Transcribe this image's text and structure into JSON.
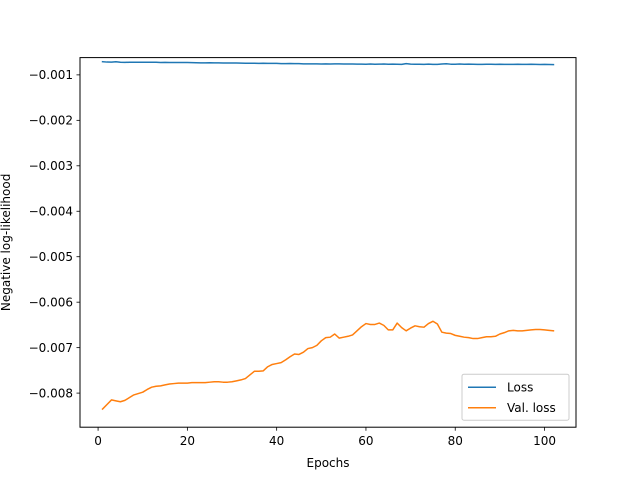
{
  "chart_data": {
    "type": "line",
    "title": "",
    "xlabel": "Epochs",
    "ylabel": "Negative log-likelihood",
    "xlim": [
      -4.05,
      107.05
    ],
    "ylim": [
      -0.00875,
      -0.00062
    ],
    "xticks": [
      0,
      20,
      40,
      60,
      80,
      100
    ],
    "yticks": [
      -0.008,
      -0.007,
      -0.006,
      -0.005,
      -0.004,
      -0.003,
      -0.002,
      -0.001
    ],
    "xtick_labels": [
      "0",
      "20",
      "40",
      "60",
      "80",
      "100"
    ],
    "ytick_labels": [
      "−0.008",
      "−0.007",
      "−0.006",
      "−0.005",
      "−0.004",
      "−0.003",
      "−0.002",
      "−0.001"
    ],
    "grid": false,
    "legend_position": "lower-right",
    "series": [
      {
        "name": "Loss",
        "color": "#1f77b4",
        "x": [
          1,
          2,
          3,
          4,
          5,
          6,
          7,
          8,
          9,
          10,
          11,
          12,
          13,
          14,
          15,
          16,
          17,
          18,
          19,
          20,
          21,
          22,
          23,
          24,
          25,
          26,
          27,
          28,
          29,
          30,
          31,
          32,
          33,
          34,
          35,
          36,
          37,
          38,
          39,
          40,
          41,
          42,
          43,
          44,
          45,
          46,
          47,
          48,
          49,
          50,
          51,
          52,
          53,
          54,
          55,
          56,
          57,
          58,
          59,
          60,
          61,
          62,
          63,
          64,
          65,
          66,
          67,
          68,
          69,
          70,
          71,
          72,
          73,
          74,
          75,
          76,
          77,
          78,
          79,
          80,
          81,
          82,
          83,
          84,
          85,
          86,
          87,
          88,
          89,
          90,
          91,
          92,
          93,
          94,
          95,
          96,
          97,
          98,
          99,
          100,
          101,
          102
        ],
        "y": [
          -0.00071,
          -0.000718,
          -0.00072,
          -0.000712,
          -0.000722,
          -0.000725,
          -0.000723,
          -0.000722,
          -0.000723,
          -0.000722,
          -0.000722,
          -0.000722,
          -0.000723,
          -0.000727,
          -0.000725,
          -0.000727,
          -0.000727,
          -0.000728,
          -0.000728,
          -0.000728,
          -0.00073,
          -0.000733,
          -0.000735,
          -0.000735,
          -0.000733,
          -0.000737,
          -0.000735,
          -0.000738,
          -0.00074,
          -0.00074,
          -0.00074,
          -0.000742,
          -0.000745,
          -0.000744,
          -0.000745,
          -0.000746,
          -0.000745,
          -0.000746,
          -0.000747,
          -0.000746,
          -0.000752,
          -0.000752,
          -0.00075,
          -0.000752,
          -0.000753,
          -0.000758,
          -0.000757,
          -0.000757,
          -0.000757,
          -0.00076,
          -0.000758,
          -0.00076,
          -0.000758,
          -0.000757,
          -0.000762,
          -0.00076,
          -0.000762,
          -0.000764,
          -0.000764,
          -0.000765,
          -0.000762,
          -0.000765,
          -0.000763,
          -0.000762,
          -0.000767,
          -0.000763,
          -0.000765,
          -0.00077,
          -0.000752,
          -0.000764,
          -0.000767,
          -0.000765,
          -0.000768,
          -0.000764,
          -0.000769,
          -0.000768,
          -0.000762,
          -0.000755,
          -0.000765,
          -0.000765,
          -0.000762,
          -0.000766,
          -0.000764,
          -0.000766,
          -0.000768,
          -0.000769,
          -0.000767,
          -0.000767,
          -0.000769,
          -0.000766,
          -0.000768,
          -0.000769,
          -0.000769,
          -0.000767,
          -0.000769,
          -0.000768,
          -0.000766,
          -0.000769,
          -0.000771,
          -0.00077,
          -0.000772,
          -0.000773
        ]
      },
      {
        "name": "Val. loss",
        "color": "#ff7f0e",
        "x": [
          1,
          2,
          3,
          4,
          5,
          6,
          7,
          8,
          9,
          10,
          11,
          12,
          13,
          14,
          15,
          16,
          17,
          18,
          19,
          20,
          21,
          22,
          23,
          24,
          25,
          26,
          27,
          28,
          29,
          30,
          31,
          32,
          33,
          34,
          35,
          36,
          37,
          38,
          39,
          40,
          41,
          42,
          43,
          44,
          45,
          46,
          47,
          48,
          49,
          50,
          51,
          52,
          53,
          54,
          55,
          56,
          57,
          58,
          59,
          60,
          61,
          62,
          63,
          64,
          65,
          66,
          67,
          68,
          69,
          70,
          71,
          72,
          73,
          74,
          75,
          76,
          77,
          78,
          79,
          80,
          81,
          82,
          83,
          84,
          85,
          86,
          87,
          88,
          89,
          90,
          91,
          92,
          93,
          94,
          95,
          96,
          97,
          98,
          99,
          100,
          101,
          102
        ],
        "y": [
          -0.00835,
          -0.00825,
          -0.00815,
          -0.00817,
          -0.00819,
          -0.00816,
          -0.0081,
          -0.00804,
          -0.00801,
          -0.00798,
          -0.00792,
          -0.00787,
          -0.00785,
          -0.00784,
          -0.00782,
          -0.0078,
          -0.00779,
          -0.00778,
          -0.00778,
          -0.00778,
          -0.00777,
          -0.00777,
          -0.00777,
          -0.00777,
          -0.00776,
          -0.00775,
          -0.00775,
          -0.00776,
          -0.00776,
          -0.00775,
          -0.00773,
          -0.00771,
          -0.00768,
          -0.0076,
          -0.00752,
          -0.00752,
          -0.00751,
          -0.00742,
          -0.00737,
          -0.00735,
          -0.00733,
          -0.00727,
          -0.0072,
          -0.00714,
          -0.00715,
          -0.0071,
          -0.00702,
          -0.007,
          -0.00695,
          -0.00685,
          -0.00678,
          -0.00677,
          -0.0067,
          -0.00679,
          -0.00677,
          -0.00675,
          -0.00672,
          -0.00663,
          -0.00654,
          -0.00647,
          -0.00649,
          -0.00649,
          -0.00646,
          -0.00651,
          -0.00661,
          -0.00661,
          -0.00646,
          -0.00656,
          -0.00663,
          -0.00657,
          -0.00652,
          -0.00654,
          -0.00655,
          -0.00647,
          -0.00642,
          -0.00648,
          -0.00666,
          -0.00668,
          -0.00669,
          -0.00673,
          -0.00675,
          -0.00677,
          -0.00678,
          -0.0068,
          -0.0068,
          -0.00678,
          -0.00676,
          -0.00676,
          -0.00675,
          -0.0067,
          -0.00667,
          -0.00663,
          -0.00662,
          -0.00663,
          -0.00663,
          -0.00662,
          -0.00661,
          -0.0066,
          -0.0066,
          -0.00661,
          -0.00662,
          -0.00663
        ]
      }
    ]
  }
}
